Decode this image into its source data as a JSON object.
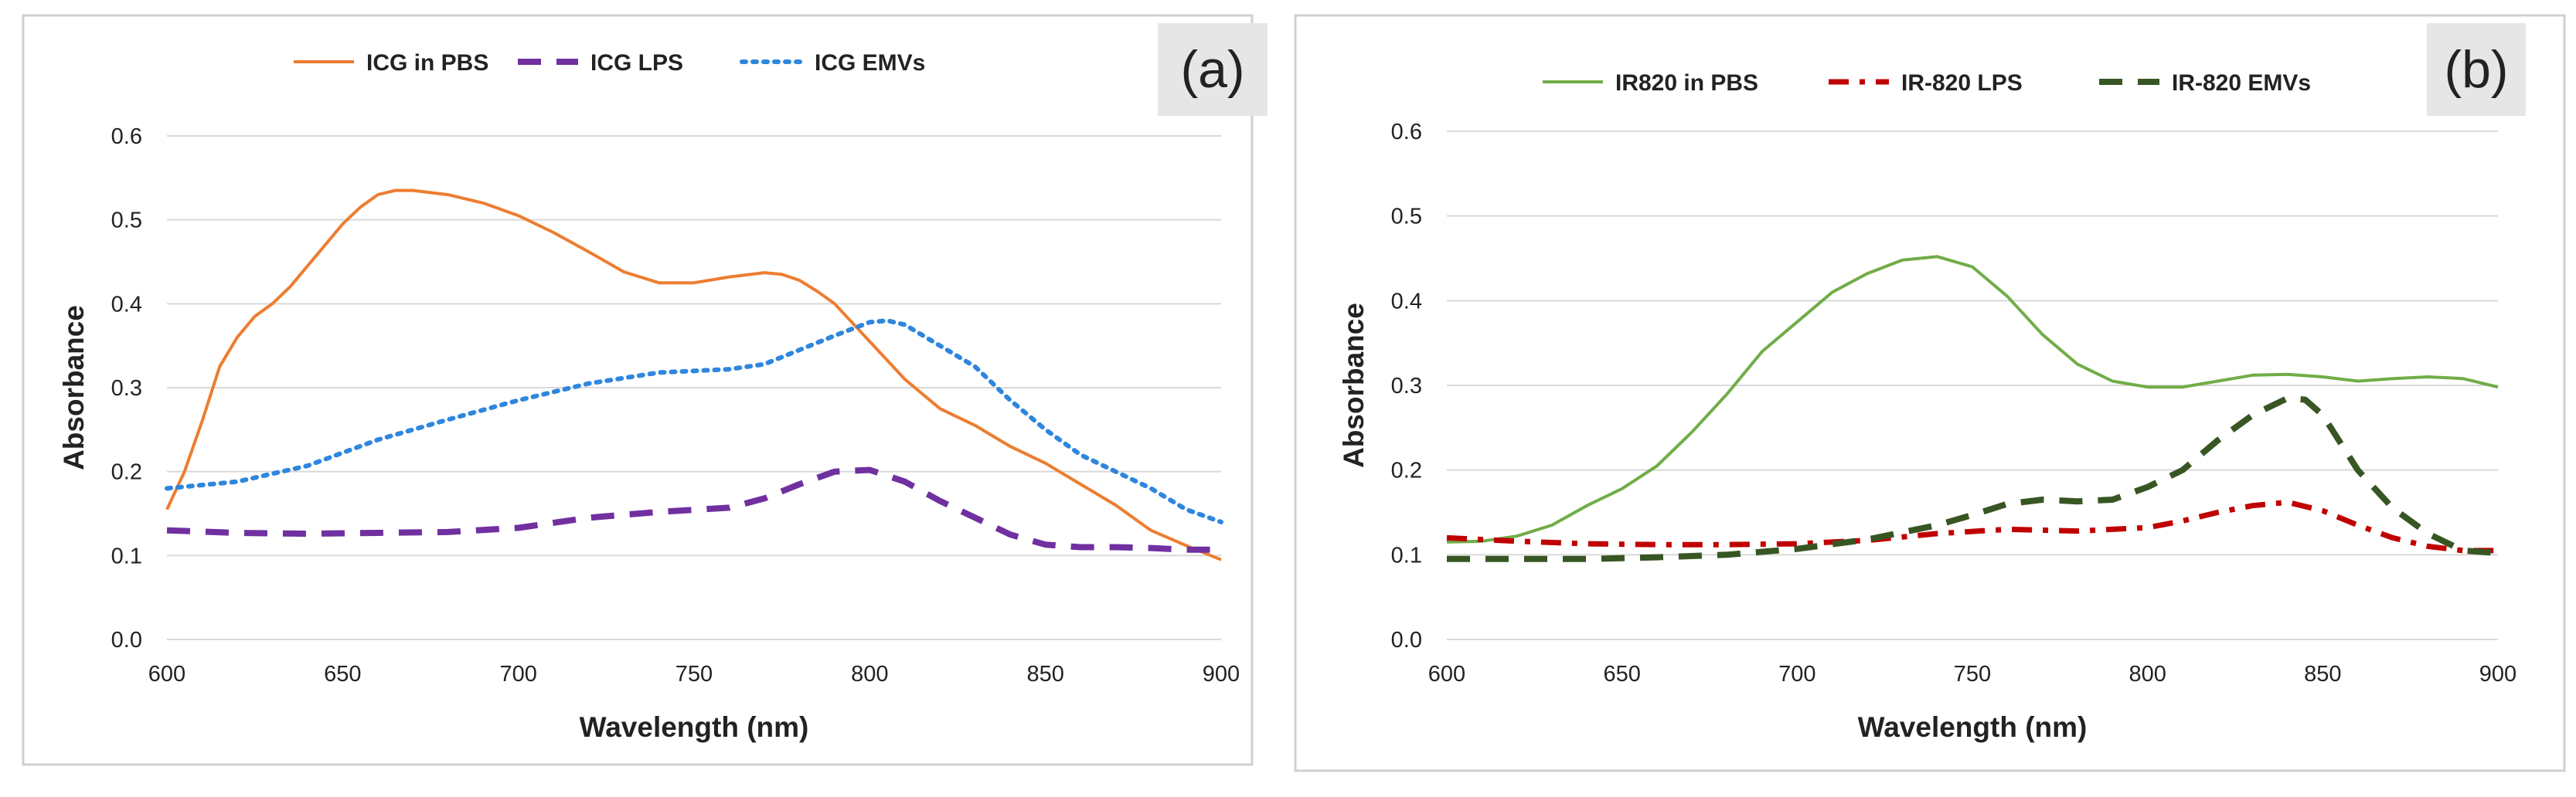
{
  "chart_data": [
    {
      "type": "line",
      "panel_label": "(a)",
      "xlabel": "Wavelength (nm)",
      "ylabel": "Absorbance",
      "xlim": [
        600,
        900
      ],
      "ylim": [
        0.0,
        0.6
      ],
      "x_ticks": [
        "600",
        "650",
        "700",
        "750",
        "800",
        "850",
        "900"
      ],
      "y_ticks": [
        "0.0",
        "0.1",
        "0.2",
        "0.3",
        "0.4",
        "0.5",
        "0.6"
      ],
      "grid": true,
      "legend_position": "top",
      "series": [
        {
          "name": "ICG in PBS",
          "color": "#ED7D31",
          "style": "solid",
          "x": [
            600,
            605,
            610,
            615,
            620,
            625,
            630,
            635,
            640,
            645,
            650,
            655,
            660,
            665,
            670,
            680,
            690,
            700,
            710,
            720,
            730,
            740,
            750,
            760,
            770,
            775,
            780,
            785,
            790,
            800,
            810,
            820,
            830,
            840,
            850,
            860,
            870,
            880,
            890,
            900
          ],
          "y": [
            0.155,
            0.2,
            0.26,
            0.325,
            0.36,
            0.385,
            0.4,
            0.42,
            0.445,
            0.47,
            0.495,
            0.515,
            0.53,
            0.535,
            0.535,
            0.53,
            0.52,
            0.505,
            0.485,
            0.462,
            0.438,
            0.425,
            0.425,
            0.432,
            0.437,
            0.435,
            0.428,
            0.415,
            0.4,
            0.355,
            0.31,
            0.275,
            0.255,
            0.23,
            0.21,
            0.185,
            0.16,
            0.13,
            0.112,
            0.095
          ]
        },
        {
          "name": "ICG LPS",
          "color": "#7030A0",
          "style": "dashed",
          "x": [
            600,
            620,
            640,
            660,
            680,
            700,
            720,
            740,
            760,
            770,
            780,
            790,
            800,
            810,
            820,
            830,
            840,
            850,
            860,
            870,
            880,
            890,
            900
          ],
          "y": [
            0.13,
            0.127,
            0.126,
            0.127,
            0.128,
            0.133,
            0.145,
            0.152,
            0.157,
            0.168,
            0.185,
            0.2,
            0.202,
            0.188,
            0.165,
            0.145,
            0.125,
            0.113,
            0.11,
            0.11,
            0.109,
            0.107,
            0.107
          ]
        },
        {
          "name": "ICG EMVs",
          "color": "#2E86DE",
          "style": "dotted",
          "x": [
            600,
            620,
            640,
            660,
            680,
            700,
            720,
            740,
            760,
            770,
            780,
            790,
            800,
            805,
            810,
            820,
            830,
            840,
            850,
            860,
            870,
            880,
            890,
            900
          ],
          "y": [
            0.18,
            0.188,
            0.207,
            0.238,
            0.262,
            0.285,
            0.305,
            0.318,
            0.322,
            0.328,
            0.345,
            0.362,
            0.378,
            0.38,
            0.375,
            0.35,
            0.325,
            0.285,
            0.25,
            0.22,
            0.2,
            0.18,
            0.155,
            0.14
          ]
        }
      ]
    },
    {
      "type": "line",
      "panel_label": "(b)",
      "xlabel": "Wavelength (nm)",
      "ylabel": "Absorbance",
      "xlim": [
        600,
        900
      ],
      "ylim": [
        0.0,
        0.6
      ],
      "x_ticks": [
        "600",
        "650",
        "700",
        "750",
        "800",
        "850",
        "900"
      ],
      "y_ticks": [
        "0.0",
        "0.1",
        "0.2",
        "0.3",
        "0.4",
        "0.5",
        "0.6"
      ],
      "grid": true,
      "legend_position": "top",
      "series": [
        {
          "name": "IR820 in PBS",
          "color": "#70AD47",
          "style": "solid",
          "x": [
            600,
            610,
            620,
            630,
            640,
            650,
            660,
            670,
            680,
            690,
            700,
            710,
            720,
            730,
            740,
            750,
            760,
            770,
            780,
            790,
            800,
            810,
            820,
            830,
            840,
            850,
            860,
            870,
            880,
            890,
            900
          ],
          "y": [
            0.115,
            0.116,
            0.122,
            0.135,
            0.158,
            0.178,
            0.205,
            0.245,
            0.29,
            0.34,
            0.375,
            0.41,
            0.432,
            0.448,
            0.452,
            0.44,
            0.405,
            0.36,
            0.325,
            0.305,
            0.298,
            0.298,
            0.305,
            0.312,
            0.313,
            0.31,
            0.305,
            0.308,
            0.31,
            0.308,
            0.298
          ]
        },
        {
          "name": "IR-820 LPS",
          "color": "#C00000",
          "style": "dashdot",
          "x": [
            600,
            620,
            640,
            660,
            680,
            700,
            720,
            740,
            760,
            780,
            800,
            810,
            820,
            830,
            840,
            850,
            860,
            870,
            880,
            890,
            900
          ],
          "y": [
            0.12,
            0.116,
            0.113,
            0.112,
            0.112,
            0.113,
            0.117,
            0.125,
            0.13,
            0.128,
            0.132,
            0.14,
            0.15,
            0.158,
            0.162,
            0.152,
            0.135,
            0.12,
            0.11,
            0.105,
            0.105
          ]
        },
        {
          "name": "IR-820 EMVs",
          "color": "#375623",
          "style": "dashed",
          "x": [
            600,
            620,
            640,
            660,
            680,
            700,
            720,
            740,
            750,
            760,
            770,
            780,
            790,
            800,
            810,
            820,
            830,
            840,
            845,
            850,
            860,
            870,
            880,
            890,
            900
          ],
          "y": [
            0.095,
            0.095,
            0.095,
            0.097,
            0.1,
            0.107,
            0.118,
            0.135,
            0.147,
            0.16,
            0.165,
            0.163,
            0.165,
            0.18,
            0.2,
            0.235,
            0.265,
            0.285,
            0.283,
            0.265,
            0.2,
            0.155,
            0.125,
            0.105,
            0.102
          ]
        }
      ]
    }
  ]
}
